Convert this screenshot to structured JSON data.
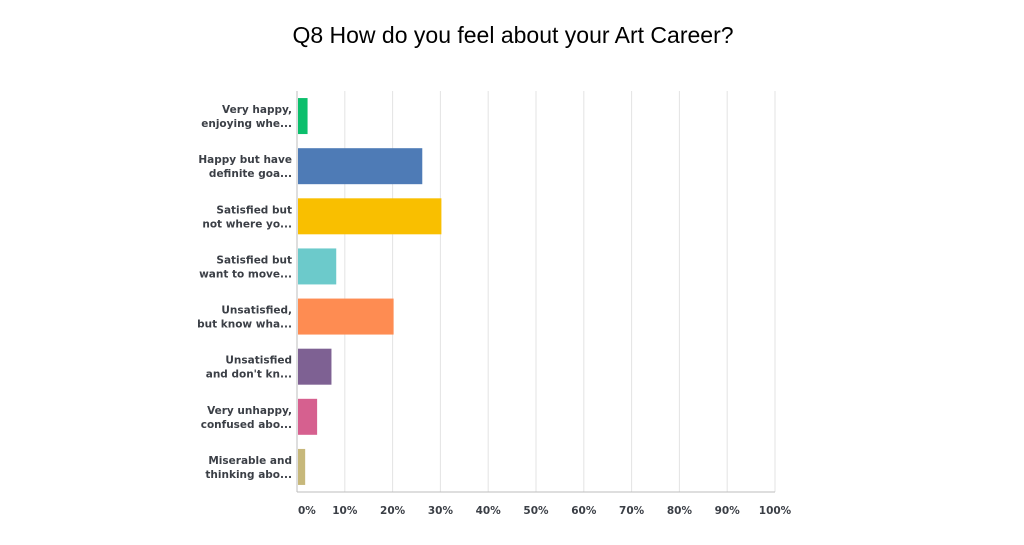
{
  "chart_data": {
    "type": "bar",
    "orientation": "horizontal",
    "title": "Q8 How do you feel about your Art Career?",
    "categories": [
      [
        "Very happy,",
        "enjoying whe..."
      ],
      [
        "Happy but have",
        "definite goa..."
      ],
      [
        "Satisfied but",
        "not where yo..."
      ],
      [
        "Satisfied but",
        "want to move..."
      ],
      [
        "Unsatisfied,",
        "but know wha..."
      ],
      [
        "Unsatisfied",
        "and don't kn..."
      ],
      [
        "Very unhappy,",
        "confused abo..."
      ],
      [
        "Miserable and",
        "thinking abo..."
      ]
    ],
    "values": [
      2,
      26,
      30,
      8,
      20,
      7,
      4,
      1.5
    ],
    "colors": [
      "#0bbf6c",
      "#4e7bb6",
      "#f9bf00",
      "#6ccacb",
      "#fe8c52",
      "#7e6193",
      "#d6608f",
      "#c7b87b"
    ],
    "xlim": [
      0,
      100
    ],
    "xticks": [
      "0%",
      "10%",
      "20%",
      "30%",
      "40%",
      "50%",
      "60%",
      "70%",
      "80%",
      "90%",
      "100%"
    ],
    "grid": true,
    "legend": "none"
  }
}
